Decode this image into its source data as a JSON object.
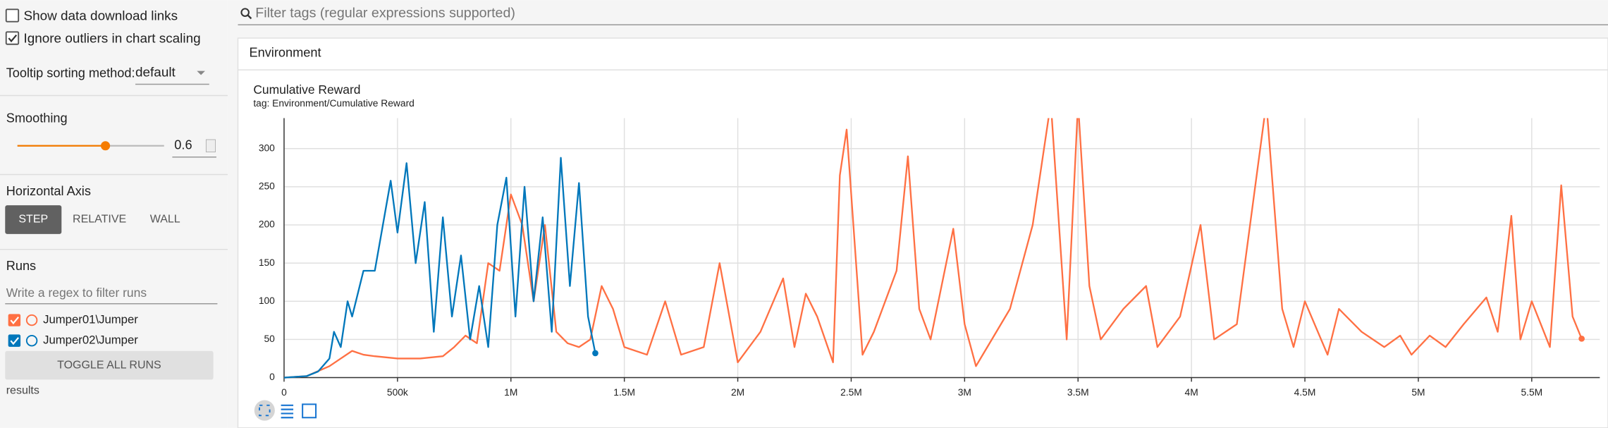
{
  "sidebar": {
    "show_download_links": "Show data download links",
    "ignore_outliers": "Ignore outliers in chart scaling",
    "tooltip_label": "Tooltip sorting method:",
    "tooltip_value": "default",
    "smoothing_label": "Smoothing",
    "smoothing_value": 0.6,
    "horizontal_axis_label": "Horizontal Axis",
    "axis_buttons": [
      "STEP",
      "RELATIVE",
      "WALL"
    ],
    "runs_label": "Runs",
    "runs_filter_placeholder": "Write a regex to filter runs",
    "toggle_all": "TOGGLE ALL RUNS",
    "results": "results"
  },
  "header": {
    "tag_filter_placeholder": "Filter tags (regular expressions supported)",
    "section": "Environment"
  },
  "chart_data": {
    "type": "line",
    "title": "Cumulative Reward",
    "subtitle": "tag: Environment/Cumulative Reward",
    "xlim": [
      0,
      5800000
    ],
    "xticks": [
      0,
      {
        "value": 500000,
        "label": "500k"
      },
      {
        "value": 1000000,
        "label": "1M"
      },
      {
        "value": 1500000,
        "label": "1.5M"
      },
      {
        "value": 2000000,
        "label": "2M"
      },
      {
        "value": 2500000,
        "label": "2.5M"
      },
      {
        "value": 3000000,
        "label": "3M"
      },
      {
        "value": 3500000,
        "label": "3.5M"
      },
      {
        "value": 4000000,
        "label": "4M"
      },
      {
        "value": 4500000,
        "label": "4.5M"
      },
      {
        "value": 5000000,
        "label": "5M"
      },
      {
        "value": 5500000,
        "label": "5.5M"
      }
    ],
    "ylim": [
      0,
      340
    ],
    "yticks": [
      0,
      50,
      100,
      150,
      200,
      250,
      300
    ],
    "grid": true,
    "series": [
      {
        "name": "Jumper01\\Jumper",
        "color": "#ff7043",
        "x": [
          0,
          100000,
          200000,
          250000,
          300000,
          350000,
          400000,
          500000,
          600000,
          700000,
          750000,
          800000,
          850000,
          900000,
          950000,
          1000000,
          1050000,
          1100000,
          1150000,
          1200000,
          1250000,
          1300000,
          1350000,
          1400000,
          1450000,
          1500000,
          1600000,
          1680000,
          1750000,
          1850000,
          1920000,
          2000000,
          2100000,
          2200000,
          2250000,
          2300000,
          2350000,
          2420000,
          2450000,
          2480000,
          2550000,
          2600000,
          2700000,
          2750000,
          2800000,
          2850000,
          2950000,
          3000000,
          3050000,
          3100000,
          3200000,
          3300000,
          3380000,
          3450000,
          3500000,
          3550000,
          3600000,
          3700000,
          3800000,
          3850000,
          3950000,
          4040000,
          4100000,
          4200000,
          4330000,
          4400000,
          4450000,
          4500000,
          4600000,
          4650000,
          4750000,
          4850000,
          4920000,
          4970000,
          5050000,
          5120000,
          5200000,
          5300000,
          5350000,
          5410000,
          5450000,
          5500000,
          5580000,
          5630000,
          5680000,
          5720000
        ],
        "values": [
          0,
          2,
          15,
          25,
          35,
          30,
          28,
          25,
          25,
          28,
          40,
          55,
          45,
          150,
          140,
          240,
          200,
          100,
          200,
          60,
          45,
          40,
          50,
          120,
          90,
          40,
          30,
          100,
          30,
          40,
          150,
          20,
          60,
          130,
          40,
          110,
          80,
          20,
          265,
          325,
          30,
          60,
          140,
          290,
          90,
          50,
          195,
          70,
          15,
          40,
          90,
          200,
          360,
          50,
          360,
          120,
          50,
          90,
          120,
          40,
          80,
          200,
          50,
          70,
          360,
          90,
          40,
          100,
          30,
          90,
          60,
          40,
          55,
          30,
          55,
          40,
          70,
          105,
          60,
          212,
          50,
          100,
          40,
          252,
          80,
          51
        ]
      },
      {
        "name": "Jumper02\\Jumper",
        "color": "#0077bb",
        "x": [
          0,
          100000,
          150000,
          200000,
          220000,
          250000,
          280000,
          300000,
          350000,
          400000,
          470000,
          500000,
          540000,
          580000,
          620000,
          660000,
          700000,
          740000,
          780000,
          820000,
          860000,
          900000,
          940000,
          980000,
          1020000,
          1060000,
          1100000,
          1140000,
          1180000,
          1220000,
          1260000,
          1300000,
          1340000,
          1372000
        ],
        "values": [
          0,
          2,
          8,
          25,
          60,
          40,
          100,
          80,
          140,
          140,
          258,
          190,
          281,
          150,
          230,
          60,
          210,
          80,
          160,
          50,
          120,
          40,
          200,
          262,
          80,
          250,
          100,
          210,
          60,
          288,
          120,
          255,
          80,
          32
        ]
      }
    ]
  }
}
